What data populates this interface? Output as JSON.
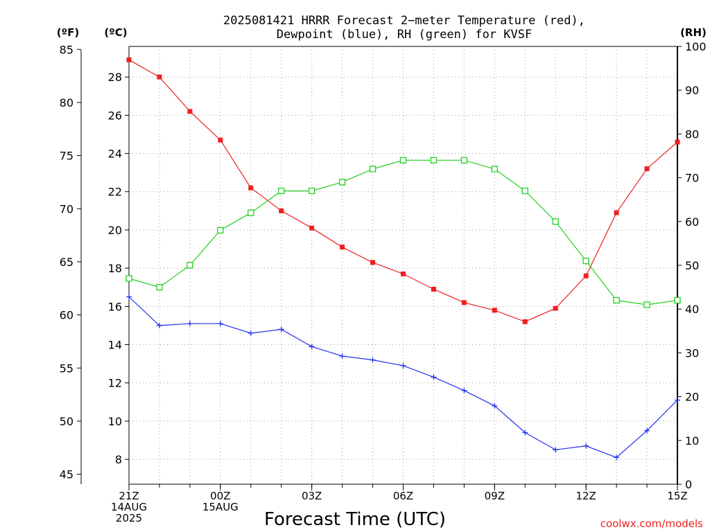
{
  "chart_data": {
    "type": "line",
    "title_line1": "2025081421 HRRR Forecast 2−meter Temperature (red),",
    "title_line2": "Dewpoint (blue), RH (green) for KVSF",
    "xlabel": "Forecast Time (UTC)",
    "unit_labels": {
      "fahrenheit": "(ºF)",
      "celsius": "(ºC)",
      "rh": "(RH)"
    },
    "credit": "coolwx.com/models",
    "x_hours": [
      0,
      1,
      2,
      3,
      4,
      5,
      6,
      7,
      8,
      9,
      10,
      11,
      12,
      13,
      14,
      15,
      16,
      17,
      18
    ],
    "x_ticks": [
      {
        "hour": 0,
        "lines": [
          "21Z",
          "14AUG",
          "2025"
        ]
      },
      {
        "hour": 3,
        "lines": [
          "00Z",
          "15AUG"
        ]
      },
      {
        "hour": 6,
        "lines": [
          "03Z"
        ]
      },
      {
        "hour": 9,
        "lines": [
          "06Z"
        ]
      },
      {
        "hour": 12,
        "lines": [
          "09Z"
        ]
      },
      {
        "hour": 15,
        "lines": [
          "12Z"
        ]
      },
      {
        "hour": 18,
        "lines": [
          "15Z"
        ]
      }
    ],
    "celsius_axis": {
      "ylim": [
        6.7,
        29.6
      ],
      "ticks": [
        "8",
        "10",
        "12",
        "14",
        "16",
        "18",
        "20",
        "22",
        "24",
        "26",
        "28"
      ]
    },
    "fahrenheit_axis": {
      "ticks": [
        "45",
        "50",
        "55",
        "60",
        "65",
        "70",
        "75",
        "80",
        "85"
      ]
    },
    "rh_axis": {
      "ylim": [
        0,
        100
      ],
      "ticks": [
        "0",
        "10",
        "20",
        "30",
        "40",
        "50",
        "60",
        "70",
        "80",
        "90",
        "100"
      ]
    },
    "grid": true,
    "series": [
      {
        "key": "temperature",
        "color": "#ee2020",
        "marker": "filled-square",
        "axis": "celsius",
        "values": [
          28.9,
          28.0,
          26.2,
          24.7,
          22.2,
          21.0,
          20.1,
          19.1,
          18.3,
          17.7,
          16.9,
          16.2,
          15.8,
          15.2,
          15.9,
          17.6,
          20.9,
          23.2,
          24.6
        ]
      },
      {
        "key": "dewpoint",
        "color": "#2030ee",
        "marker": "plus",
        "axis": "celsius",
        "values": [
          16.5,
          15.0,
          15.1,
          15.1,
          14.6,
          14.8,
          13.9,
          13.4,
          13.2,
          12.9,
          12.3,
          11.6,
          10.8,
          9.4,
          8.5,
          8.7,
          8.1,
          9.5,
          11.1
        ]
      },
      {
        "key": "rh",
        "color": "#20d020",
        "marker": "open-square",
        "axis": "rh",
        "values": [
          47,
          45,
          50,
          58,
          62,
          67,
          67,
          69,
          72,
          74,
          74,
          74,
          72,
          67,
          60,
          51,
          42,
          41,
          42
        ]
      }
    ]
  }
}
